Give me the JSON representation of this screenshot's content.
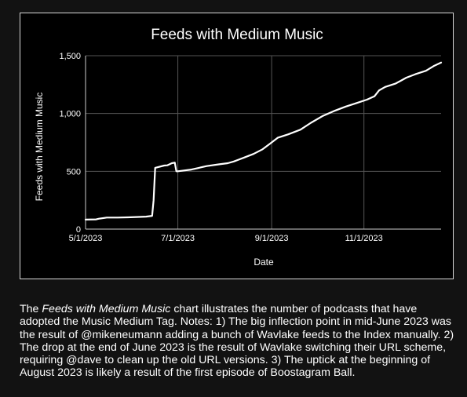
{
  "chart_data": {
    "type": "line",
    "title": "Feeds with Medium Music",
    "xlabel": "Date",
    "ylabel": "Feeds with Medium Music",
    "ylim": [
      0,
      1500
    ],
    "yticks": [
      0,
      500,
      1000,
      1500
    ],
    "ytick_labels": [
      "0",
      "500",
      "1,000",
      "1,500"
    ],
    "xticks": [
      "2023-05-01",
      "2023-07-01",
      "2023-09-01",
      "2023-11-01"
    ],
    "xtick_labels": [
      "5/1/2023",
      "7/1/2023",
      "9/1/2023",
      "11/1/2023"
    ],
    "xlim": [
      "2023-05-01",
      "2023-12-22"
    ],
    "grid": true,
    "colors": {
      "line": "#ffffff",
      "grid": "#555555",
      "axis": "#cccccc",
      "background": "#000000"
    },
    "series": [
      {
        "x": [
          "2023-05-01",
          "2023-05-08",
          "2023-05-10",
          "2023-05-15",
          "2023-05-22",
          "2023-05-29",
          "2023-06-05",
          "2023-06-10",
          "2023-06-14",
          "2023-06-15",
          "2023-06-16",
          "2023-06-22",
          "2023-06-24",
          "2023-06-27",
          "2023-06-29",
          "2023-06-30",
          "2023-07-01",
          "2023-07-10",
          "2023-07-15",
          "2023-07-20",
          "2023-07-28",
          "2023-08-03",
          "2023-08-07",
          "2023-08-10",
          "2023-08-14",
          "2023-08-20",
          "2023-08-26",
          "2023-08-31",
          "2023-09-05",
          "2023-09-12",
          "2023-09-20",
          "2023-09-27",
          "2023-10-05",
          "2023-10-12",
          "2023-10-20",
          "2023-10-27",
          "2023-11-03",
          "2023-11-08",
          "2023-11-11",
          "2023-11-15",
          "2023-11-22",
          "2023-11-29",
          "2023-12-05",
          "2023-12-12",
          "2023-12-17",
          "2023-12-22"
        ],
        "y": [
          82,
          84,
          90,
          100,
          100,
          102,
          105,
          108,
          115,
          250,
          530,
          550,
          552,
          570,
          575,
          500,
          500,
          515,
          530,
          545,
          560,
          570,
          585,
          600,
          620,
          650,
          690,
          740,
          790,
          820,
          860,
          920,
          980,
          1020,
          1060,
          1090,
          1120,
          1150,
          1200,
          1230,
          1260,
          1310,
          1340,
          1370,
          1410,
          1440
        ]
      }
    ]
  },
  "caption": {
    "intro": "The ",
    "chart_name": "Feeds with Medium Music",
    "body": " chart illustrates the number of podcasts that have adopted the Music Medium Tag. Notes: 1) The big inflection point in mid-June 2023 was the result of @mikeneumann adding a bunch of Wavlake feeds to the Index manually. 2) The drop at the end of June 2023 is the result of Wavlake switching their URL scheme, requiring @dave to clean up the old URL versions. 3) The uptick at the beginning of August 2023 is likely a result of the first episode of Boostagram Ball."
  }
}
